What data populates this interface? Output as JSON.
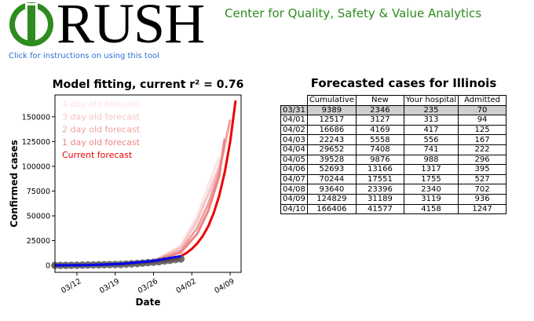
{
  "header": {
    "logo_text": "RUSH",
    "tagline": "Center for Quality, Safety & Value Analytics",
    "help_link": "Click for instructions on using this tool"
  },
  "chart_data": {
    "type": "line",
    "title": "Model fitting, current r² = 0.76",
    "xlabel": "Date",
    "ylabel": "Confirmed cases",
    "x_ticks": [
      "03/12",
      "03/19",
      "03/26",
      "04/02",
      "04/09"
    ],
    "y_ticks": [
      0,
      25000,
      50000,
      75000,
      100000,
      125000,
      150000
    ],
    "ylim": [
      -7000,
      172000
    ],
    "xlim": [
      "03/08",
      "04/11"
    ],
    "legend_position": "top-left",
    "observed": {
      "color": "#555555",
      "x": [
        "03/08",
        "03/09",
        "03/10",
        "03/11",
        "03/12",
        "03/13",
        "03/14",
        "03/15",
        "03/16",
        "03/17",
        "03/18",
        "03/19",
        "03/20",
        "03/21",
        "03/22",
        "03/23",
        "03/24",
        "03/25",
        "03/26",
        "03/27",
        "03/28",
        "03/29",
        "03/30",
        "03/31"
      ],
      "y": [
        0,
        0,
        0,
        100,
        200,
        300,
        400,
        500,
        600,
        700,
        800,
        900,
        1000,
        1300,
        1600,
        1900,
        2300,
        2800,
        3200,
        3800,
        4500,
        5100,
        5900,
        6600
      ]
    },
    "series": [
      {
        "name": "4 day old forecast",
        "color": "#fbe3e3",
        "x": [
          "03/08",
          "03/14",
          "03/20",
          "03/26",
          "03/31",
          "04/03",
          "04/05",
          "04/07"
        ],
        "y": [
          0,
          400,
          1300,
          4500,
          20000,
          50000,
          80000,
          110000
        ]
      },
      {
        "name": "3 day old forecast",
        "color": "#f6c4c8",
        "x": [
          "03/08",
          "03/14",
          "03/20",
          "03/26",
          "03/31",
          "04/03",
          "04/05",
          "04/07",
          "04/08"
        ],
        "y": [
          0,
          400,
          1300,
          4500,
          18000,
          45000,
          72000,
          100000,
          120000
        ]
      },
      {
        "name": "2 day old forecast",
        "color": "#f0a0a0",
        "x": [
          "03/08",
          "03/14",
          "03/20",
          "03/26",
          "03/31",
          "04/03",
          "04/05",
          "04/07",
          "04/09"
        ],
        "y": [
          0,
          400,
          1300,
          4300,
          15000,
          38000,
          62000,
          95000,
          147000
        ]
      },
      {
        "name": "1 day old forecast",
        "color": "#ee8484",
        "x": [
          "03/08",
          "03/14",
          "03/20",
          "03/26",
          "03/31",
          "04/03",
          "04/05",
          "04/07",
          "04/08"
        ],
        "y": [
          0,
          400,
          1300,
          4300,
          13000,
          32000,
          55000,
          90000,
          128000
        ]
      },
      {
        "name": "Current forecast",
        "color": "#ee0000",
        "x": [
          "03/31",
          "04/01",
          "04/02",
          "04/03",
          "04/04",
          "04/05",
          "04/06",
          "04/07",
          "04/08",
          "04/09",
          "04/10"
        ],
        "y": [
          9389,
          12517,
          16686,
          22243,
          29652,
          39528,
          52693,
          70244,
          93640,
          124829,
          166406
        ]
      }
    ],
    "fit_line": {
      "color": "#0000ee",
      "x": [
        "03/08",
        "03/14",
        "03/20",
        "03/26",
        "03/31"
      ],
      "y": [
        100,
        400,
        1500,
        4500,
        9389
      ]
    }
  },
  "forecast_table": {
    "title": "Forecasted cases for Illinois",
    "columns": [
      "Cumulative",
      "New",
      "Your hospital",
      "Admitted"
    ],
    "rows": [
      {
        "date": "03/31",
        "values": [
          "9389",
          "2346",
          "235",
          "70"
        ],
        "highlight": true
      },
      {
        "date": "04/01",
        "values": [
          "12517",
          "3127",
          "313",
          "94"
        ]
      },
      {
        "date": "04/02",
        "values": [
          "16686",
          "4169",
          "417",
          "125"
        ]
      },
      {
        "date": "04/03",
        "values": [
          "22243",
          "5558",
          "556",
          "167"
        ]
      },
      {
        "date": "04/04",
        "values": [
          "29652",
          "7408",
          "741",
          "222"
        ]
      },
      {
        "date": "04/05",
        "values": [
          "39528",
          "9876",
          "988",
          "296"
        ]
      },
      {
        "date": "04/06",
        "values": [
          "52693",
          "13166",
          "1317",
          "395"
        ]
      },
      {
        "date": "04/07",
        "values": [
          "70244",
          "17551",
          "1755",
          "527"
        ]
      },
      {
        "date": "04/08",
        "values": [
          "93640",
          "23396",
          "2340",
          "702"
        ]
      },
      {
        "date": "04/09",
        "values": [
          "124829",
          "31189",
          "3119",
          "936"
        ]
      },
      {
        "date": "04/10",
        "values": [
          "166406",
          "41577",
          "4158",
          "1247"
        ]
      }
    ]
  },
  "colors": {
    "brand_green": "#2e8b1f",
    "link_blue": "#2a6fd6"
  }
}
